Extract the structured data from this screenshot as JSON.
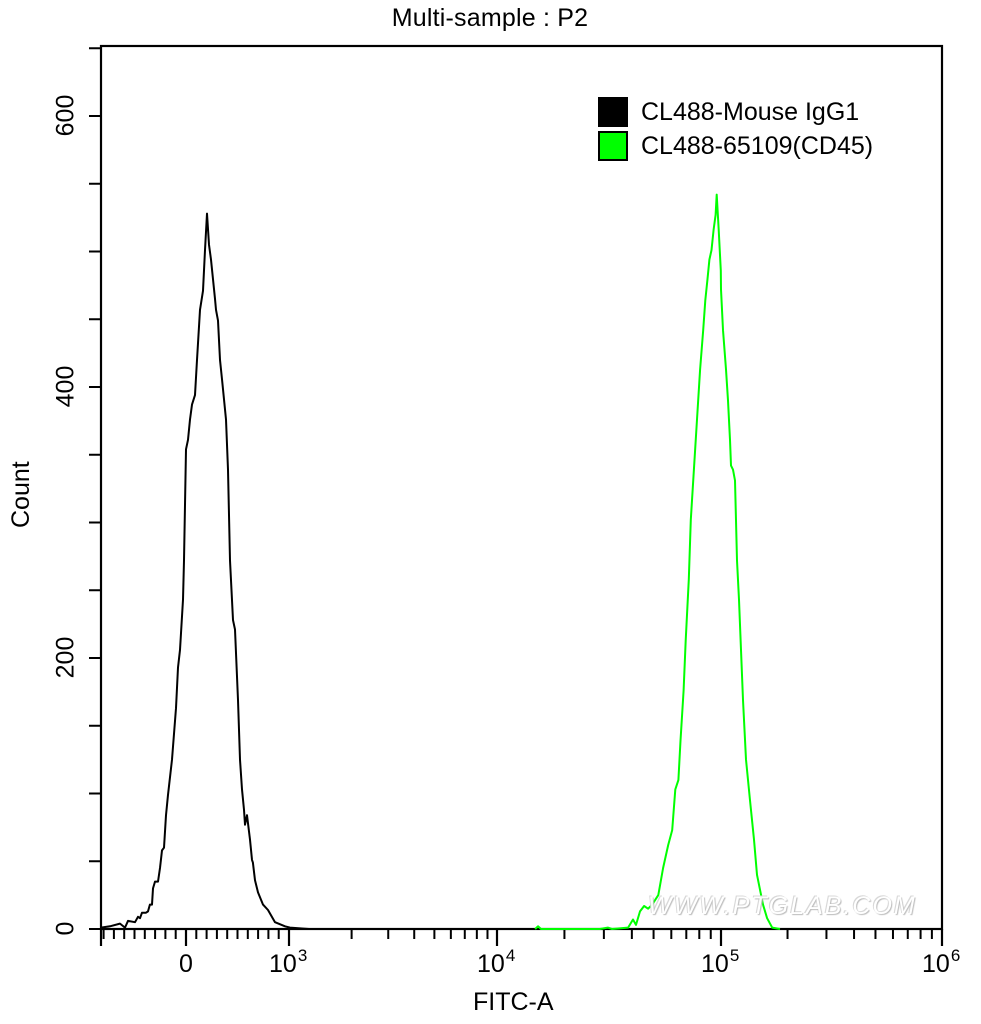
{
  "header": {
    "title": "Multi-sample : P2"
  },
  "axes": {
    "x_label": "FITC-A",
    "y_label": "Count",
    "x_ticks": [
      {
        "label": "0",
        "exp": "",
        "value": 0
      },
      {
        "label": "10",
        "exp": "3",
        "value": 1000
      },
      {
        "label": "10",
        "exp": "4",
        "value": 10000
      },
      {
        "label": "10",
        "exp": "5",
        "value": 100000
      },
      {
        "label": "10",
        "exp": "6",
        "value": 1000000
      }
    ],
    "y_ticks": [
      {
        "label": "0",
        "value": 0
      },
      {
        "label": "200",
        "value": 200
      },
      {
        "label": "400",
        "value": 400
      },
      {
        "label": "600",
        "value": 600
      }
    ]
  },
  "legend": {
    "items": [
      {
        "label": "CL488-Mouse IgG1",
        "color": "#000000"
      },
      {
        "label": "CL488-65109(CD45)",
        "color": "#00ff00"
      }
    ]
  },
  "watermark": "WWW.PTGLAB.COM",
  "chart_data": {
    "type": "line",
    "title": "Multi-sample : P2",
    "xlabel": "FITC-A",
    "ylabel": "Count",
    "x_scale": "biexponential",
    "xlim": [
      -825,
      1000000
    ],
    "ylim": [
      0,
      650
    ],
    "grid": false,
    "legend_position": "top-right",
    "series": [
      {
        "name": "CL488-Mouse IgG1",
        "color": "#000000",
        "peak": {
          "x": 204,
          "y": 528
        },
        "points": [
          [
            -825,
            1
          ],
          [
            -738,
            2
          ],
          [
            -641,
            4
          ],
          [
            -592,
            1
          ],
          [
            -563,
            6
          ],
          [
            -495,
            5
          ],
          [
            -466,
            9
          ],
          [
            -447,
            8
          ],
          [
            -427,
            12
          ],
          [
            -388,
            12
          ],
          [
            -369,
            13
          ],
          [
            -350,
            18
          ],
          [
            -330,
            18
          ],
          [
            -320,
            30
          ],
          [
            -301,
            35
          ],
          [
            -272,
            35
          ],
          [
            -252,
            45
          ],
          [
            -233,
            58
          ],
          [
            -214,
            60
          ],
          [
            -194,
            84
          ],
          [
            -175,
            99
          ],
          [
            -136,
            125
          ],
          [
            -97,
            163
          ],
          [
            -78,
            193
          ],
          [
            -58,
            206
          ],
          [
            -29,
            243
          ],
          [
            -19,
            272
          ],
          [
            0,
            354
          ],
          [
            19,
            361
          ],
          [
            39,
            376
          ],
          [
            58,
            387
          ],
          [
            87,
            394
          ],
          [
            107,
            420
          ],
          [
            136,
            457
          ],
          [
            165,
            471
          ],
          [
            184,
            501
          ],
          [
            204,
            528
          ],
          [
            223,
            505
          ],
          [
            243,
            494
          ],
          [
            282,
            465
          ],
          [
            291,
            457
          ],
          [
            311,
            449
          ],
          [
            330,
            420
          ],
          [
            350,
            405
          ],
          [
            388,
            376
          ],
          [
            408,
            339
          ],
          [
            427,
            272
          ],
          [
            456,
            228
          ],
          [
            476,
            221
          ],
          [
            505,
            169
          ],
          [
            524,
            125
          ],
          [
            544,
            103
          ],
          [
            563,
            88
          ],
          [
            573,
            77
          ],
          [
            592,
            84
          ],
          [
            621,
            66
          ],
          [
            641,
            51
          ],
          [
            650,
            49
          ],
          [
            670,
            36
          ],
          [
            699,
            27
          ],
          [
            748,
            18
          ],
          [
            796,
            14
          ],
          [
            864,
            5
          ],
          [
            961,
            2
          ],
          [
            1011,
            1
          ],
          [
            1248,
            0
          ]
        ]
      },
      {
        "name": "CL488-65109(CD45)",
        "color": "#00ff00",
        "peak": {
          "x": 95659,
          "y": 542
        },
        "points": [
          [
            14791,
            0
          ],
          [
            15252,
            2
          ],
          [
            15717,
            0
          ],
          [
            28775,
            0
          ],
          [
            31245,
            1
          ],
          [
            32628,
            0
          ],
          [
            38466,
            1
          ],
          [
            40465,
            7
          ],
          [
            41731,
            3
          ],
          [
            43498,
            13
          ],
          [
            45349,
            17
          ],
          [
            47284,
            15
          ],
          [
            49305,
            18
          ],
          [
            52466,
            25
          ],
          [
            55132,
            45
          ],
          [
            58085,
            62
          ],
          [
            60567,
            73
          ],
          [
            62527,
            103
          ],
          [
            64555,
            110
          ],
          [
            65959,
            139
          ],
          [
            68087,
            176
          ],
          [
            69537,
            213
          ],
          [
            71786,
            258
          ],
          [
            73317,
            302
          ],
          [
            75700,
            339
          ],
          [
            78156,
            376
          ],
          [
            80694,
            413
          ],
          [
            83313,
            442
          ],
          [
            85103,
            464
          ],
          [
            86932,
            479
          ],
          [
            88799,
            494
          ],
          [
            90707,
            501
          ],
          [
            92656,
            516
          ],
          [
            94646,
            527
          ],
          [
            95659,
            542
          ],
          [
            97711,
            516
          ],
          [
            99810,
            486
          ],
          [
            100000,
            472
          ],
          [
            102106,
            442
          ],
          [
            105349,
            413
          ],
          [
            107568,
            390
          ],
          [
            109834,
            361
          ],
          [
            110983,
            342
          ],
          [
            113310,
            339
          ],
          [
            115687,
            331
          ],
          [
            118112,
            272
          ],
          [
            120590,
            243
          ],
          [
            123117,
            206
          ],
          [
            125699,
            169
          ],
          [
            129701,
            125
          ],
          [
            135261,
            95
          ],
          [
            141059,
            66
          ],
          [
            145551,
            40
          ],
          [
            150188,
            29
          ],
          [
            154972,
            18
          ],
          [
            161627,
            8
          ],
          [
            170466,
            1
          ],
          [
            184935,
            0
          ]
        ]
      }
    ]
  }
}
